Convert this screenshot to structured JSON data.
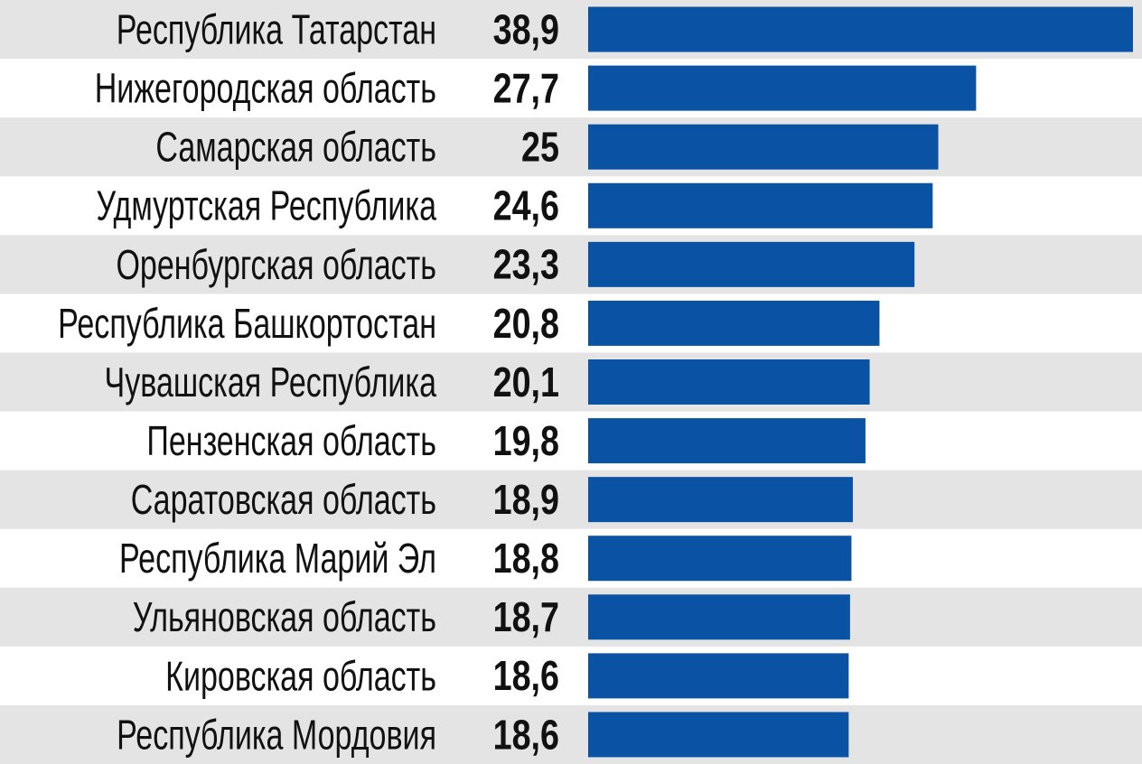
{
  "chart_data": {
    "type": "barh",
    "categories": [
      "Республика Татарстан",
      "Нижегородская область",
      "Самарская область",
      "Удмуртская Республика",
      "Оренбургская область",
      "Республика Башкортостан",
      "Чувашская Республика",
      "Пензенская область",
      "Саратовская область",
      "Республика Марий Эл",
      "Ульяновская область",
      "Кировская область",
      "Республика Мордовия"
    ],
    "values": [
      38.9,
      27.7,
      25,
      24.6,
      23.3,
      20.8,
      20.1,
      19.8,
      18.9,
      18.8,
      18.7,
      18.6,
      18.6
    ],
    "value_labels": [
      "38,9",
      "27,7",
      "25",
      "24,6",
      "23,3",
      "20,8",
      "20,1",
      "19,8",
      "18,9",
      "18,8",
      "18,7",
      "18,6",
      "18,6"
    ],
    "color": "#0a52a4",
    "xlim": [
      0,
      38.9
    ]
  }
}
